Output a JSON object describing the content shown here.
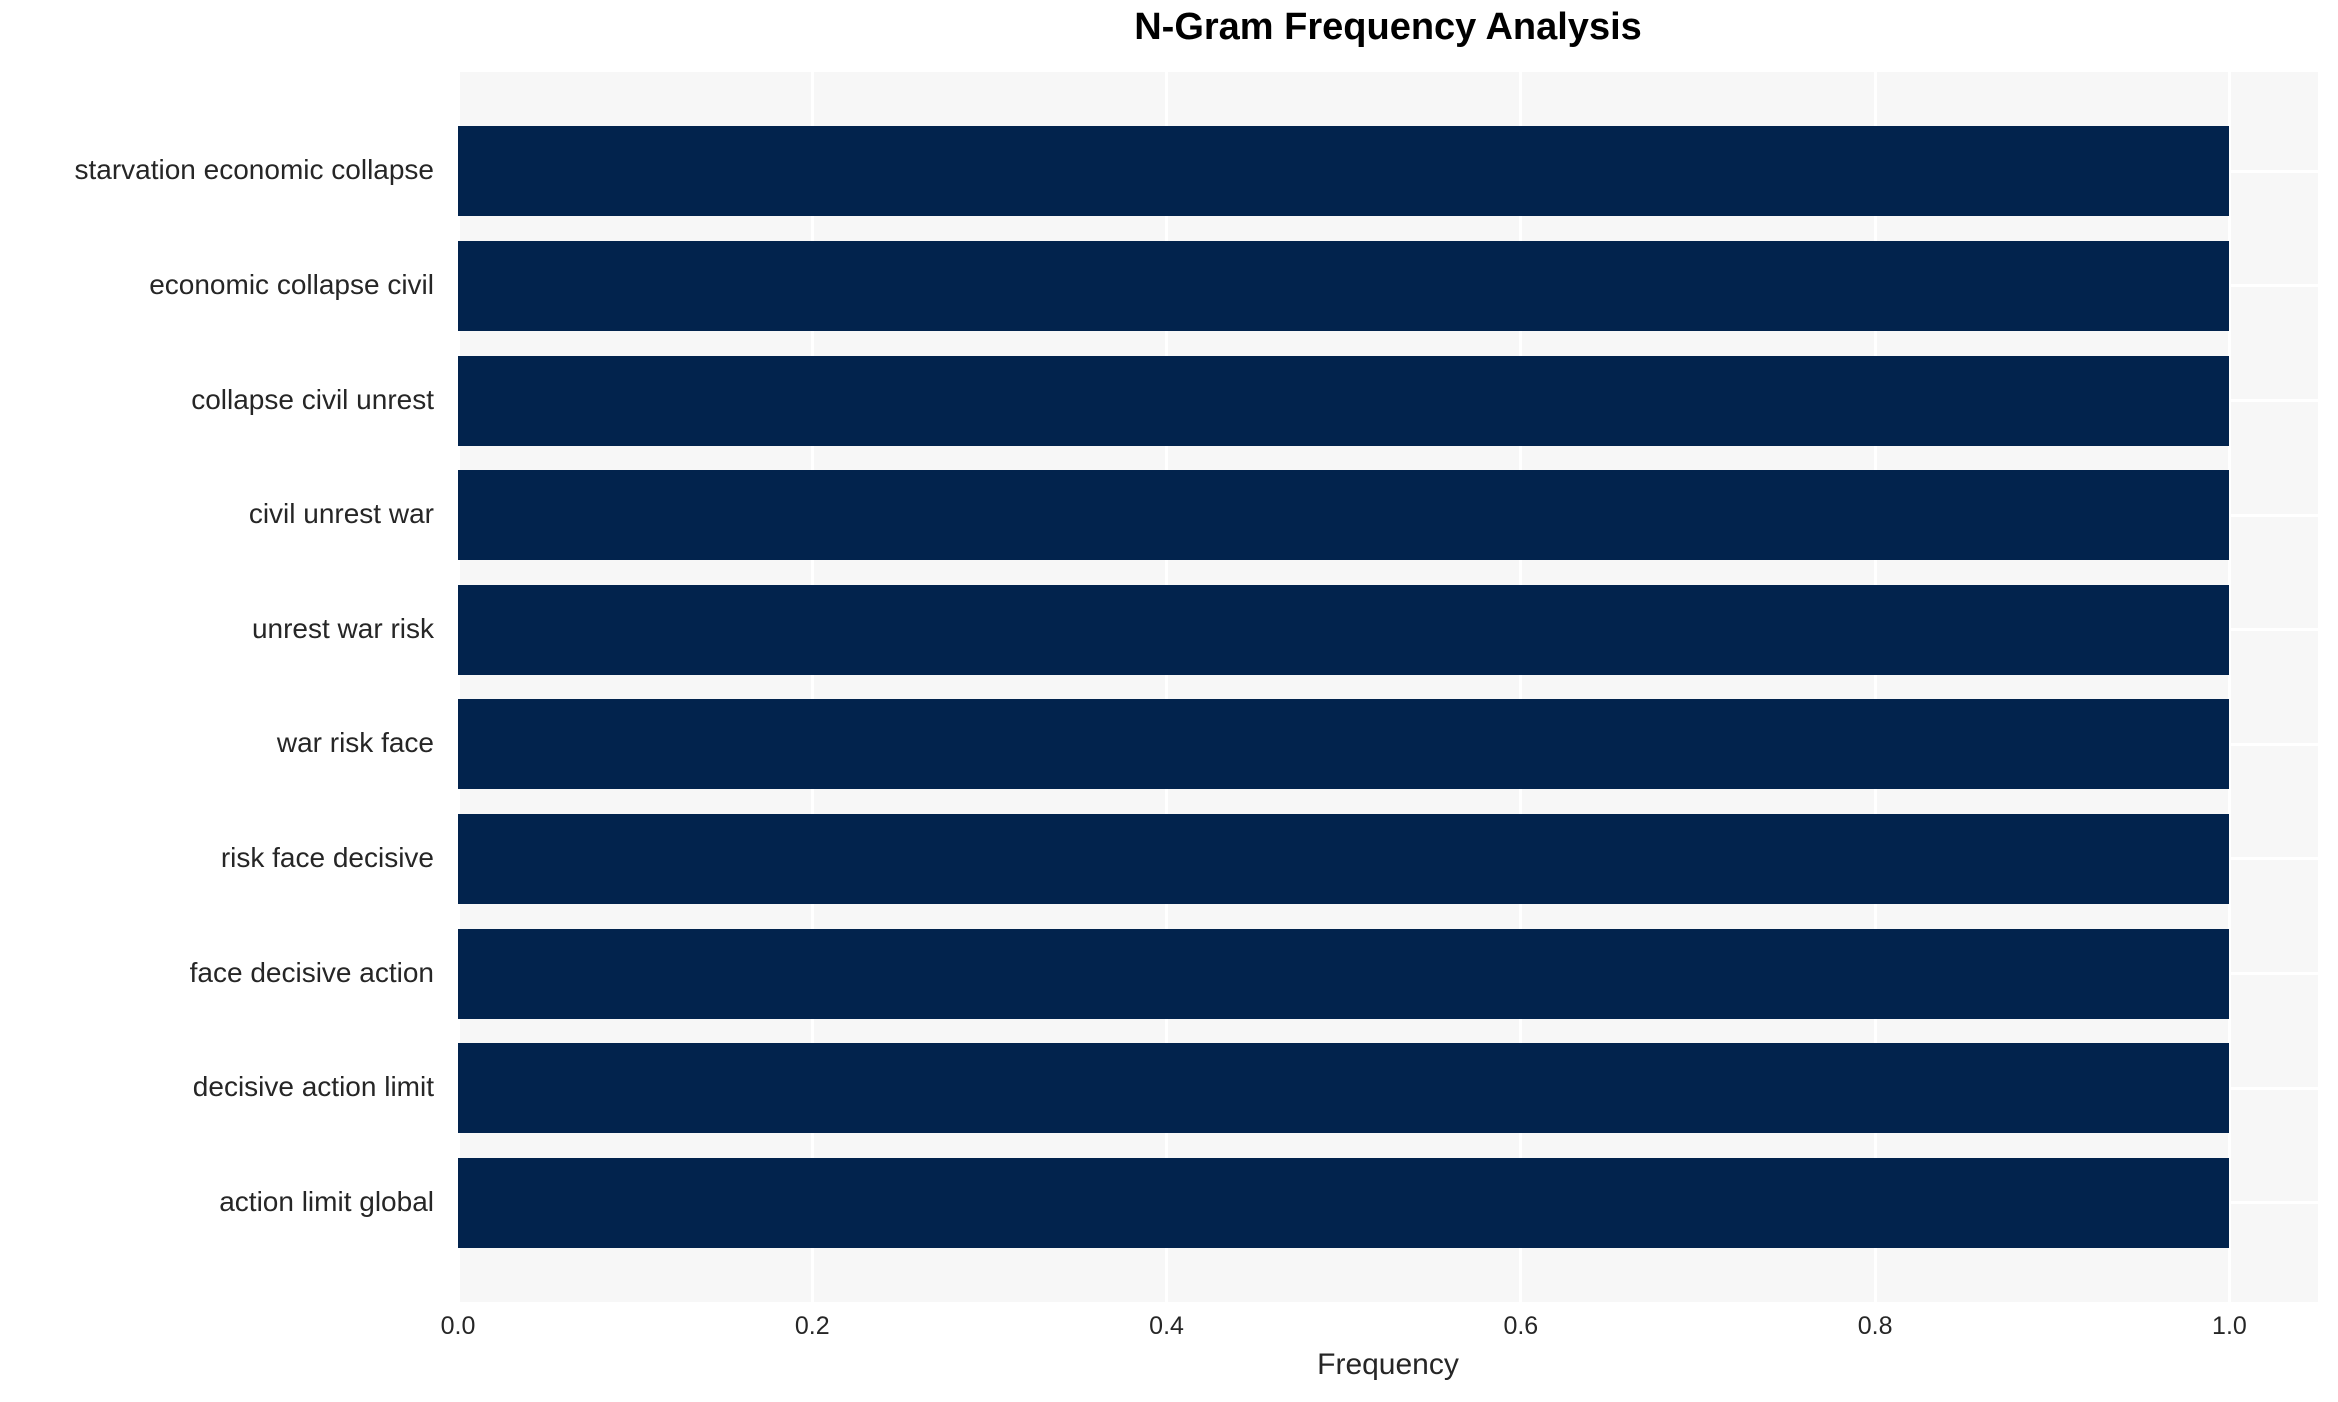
{
  "title": "N-Gram Frequency Analysis",
  "chart_data": {
    "type": "bar",
    "orientation": "horizontal",
    "title": "N-Gram Frequency Analysis",
    "xlabel": "Frequency",
    "ylabel": "",
    "categories": [
      "starvation economic collapse",
      "economic collapse civil",
      "collapse civil unrest",
      "civil unrest war",
      "unrest war risk",
      "war risk face",
      "risk face decisive",
      "face decisive action",
      "decisive action limit",
      "action limit global"
    ],
    "values": [
      1.0,
      1.0,
      1.0,
      1.0,
      1.0,
      1.0,
      1.0,
      1.0,
      1.0,
      1.0
    ],
    "xlim": [
      0,
      1.05
    ],
    "xticks": [
      0.0,
      0.2,
      0.4,
      0.6,
      0.8,
      1.0
    ],
    "xtick_labels": [
      "0.0",
      "0.2",
      "0.4",
      "0.6",
      "0.8",
      "1.0"
    ],
    "grid": true,
    "grid_axis": "both",
    "legend": false,
    "colors": {
      "bar": "#02234D",
      "plot_background": "#f7f7f7",
      "figure_background": "#ffffff",
      "gridline": "#ffffff",
      "tick_text": "#262626",
      "title_text": "#000000"
    }
  }
}
